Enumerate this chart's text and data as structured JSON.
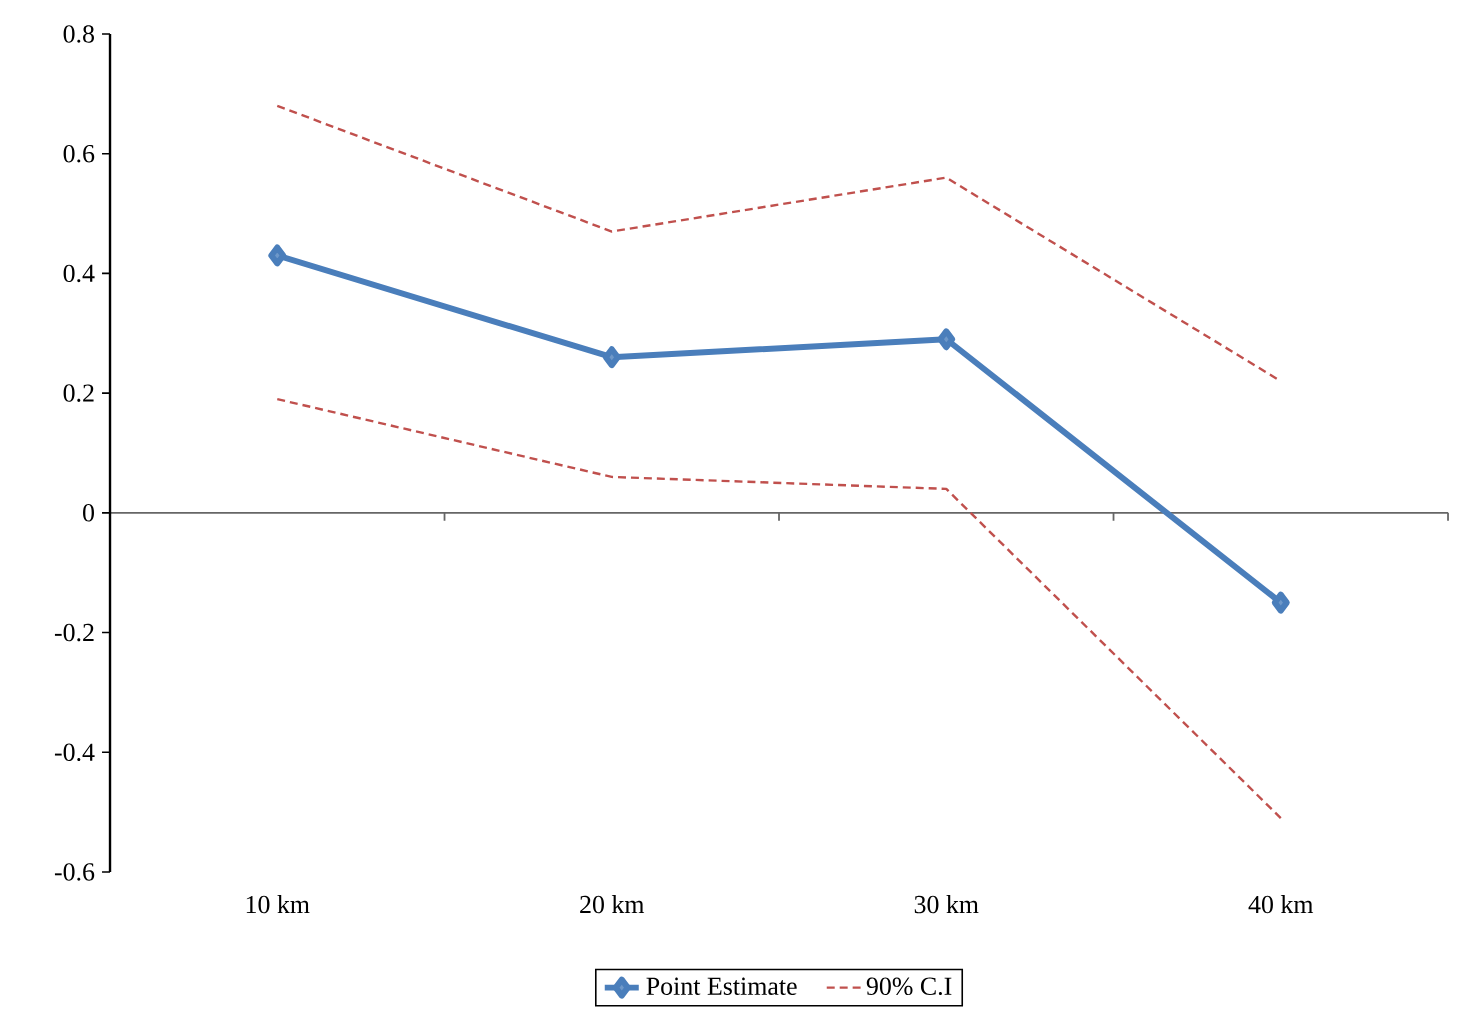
{
  "chart_data": {
    "type": "line",
    "categories": [
      "10 km",
      "20 km",
      "30 km",
      "40 km"
    ],
    "series": [
      {
        "name": "Point Estimate",
        "color": "#4a7ebb",
        "marker": "diamond",
        "line_style": "solid",
        "values": [
          0.43,
          0.26,
          0.29,
          -0.15
        ]
      },
      {
        "name": "90% C.I",
        "color": "#c0504d",
        "marker": "none",
        "line_style": "dashed",
        "values": [
          0.68,
          0.47,
          0.56,
          0.22
        ]
      },
      {
        "color": "#c0504d",
        "marker": "none",
        "line_style": "dashed",
        "values": [
          0.19,
          0.06,
          0.04,
          -0.51
        ]
      }
    ],
    "ylim": [
      -0.6,
      0.8
    ],
    "yticks": [
      -0.6,
      -0.4,
      -0.2,
      0,
      0.2,
      0.4,
      0.6,
      0.8
    ],
    "legend": "bottom"
  }
}
